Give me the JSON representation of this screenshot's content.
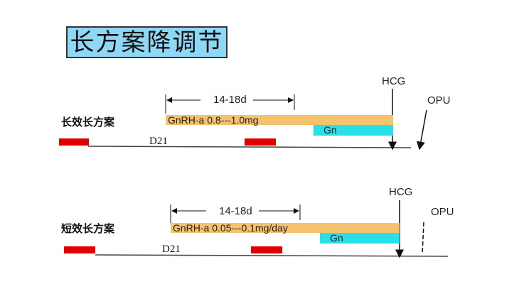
{
  "title": "长方案降调节",
  "protocols": [
    {
      "name": "长效长方案",
      "interval": "14-18d",
      "drug": "GnRH-a 0.8---1.0mg",
      "gn": "Gn",
      "day": "D21",
      "hcg": "HCG",
      "opu": "OPU"
    },
    {
      "name": "短效长方案",
      "interval": "14-18d",
      "drug": "GnRH-a 0.05---0.1mg/day",
      "gn": "Gn",
      "day": "D21",
      "hcg": "HCG",
      "opu": "OPU"
    }
  ],
  "colors": {
    "title_bg": "#8fd8f5",
    "drug_bar": "#f5c36e",
    "gn_bar": "#28e0e8",
    "menses": "#e00000"
  }
}
